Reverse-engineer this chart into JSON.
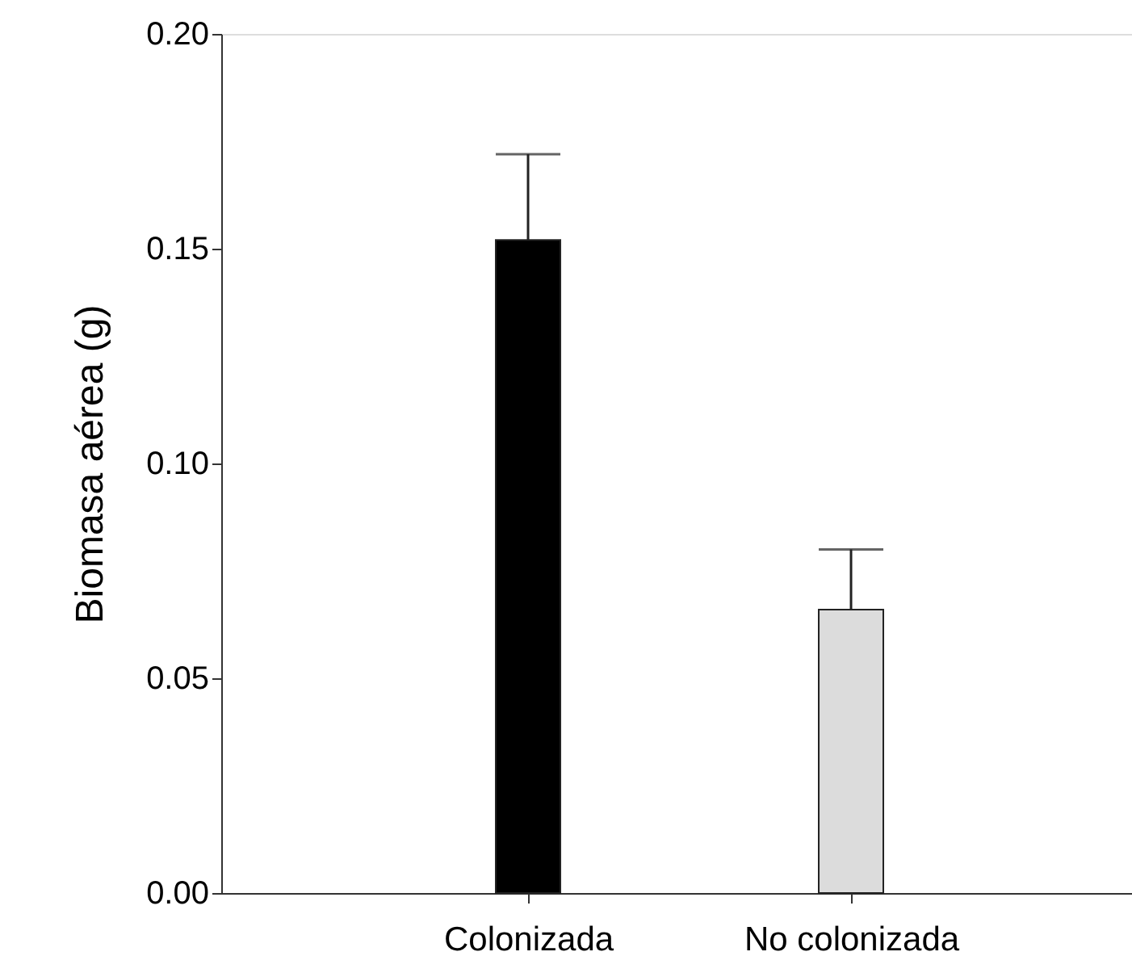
{
  "chart_data": {
    "type": "bar",
    "ylabel": "Biomasa aérea (g)",
    "categories": [
      "Colonizada",
      "No colonizada"
    ],
    "values": [
      0.152,
      0.066
    ],
    "colors": [
      "#000000",
      "#dcdcdc"
    ],
    "errors": [
      [
        0.152,
        0.172
      ],
      [
        0.066,
        0.08
      ]
    ],
    "ylim": [
      0,
      0.2
    ],
    "yticks": [
      {
        "value": 0,
        "label": "0.00"
      },
      {
        "value": 0.05,
        "label": "0.05"
      },
      {
        "value": 0.1,
        "label": "0.10"
      },
      {
        "value": 0.15,
        "label": "0.15"
      },
      {
        "value": 0.2,
        "label": "0.20"
      }
    ],
    "grid": false
  }
}
